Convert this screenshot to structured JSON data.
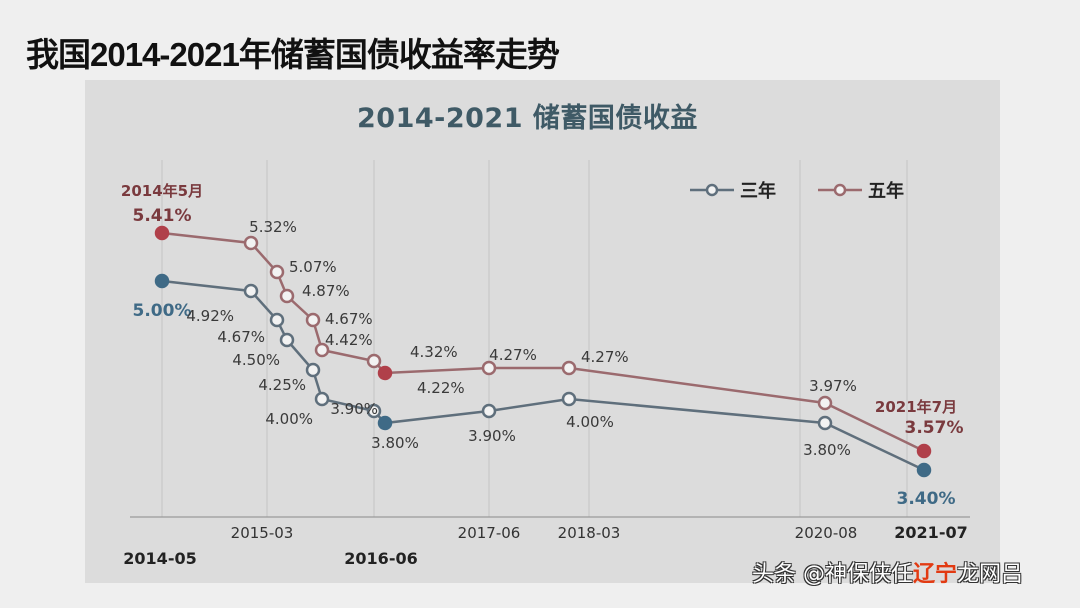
{
  "page": {
    "title": "我国2014-2021年储蓄国债收益率走势",
    "watermark_prefix": "头条 @神保侠任",
    "watermark_overlay": "辽宁",
    "watermark_suffix": "龙网吕"
  },
  "colors": {
    "three_year": "#5f6f7c",
    "three_year_fill": "#3f6a86",
    "five_year": "#9b6a6e",
    "five_year_fill": "#b0404a",
    "title": "#3f5a66",
    "highlight_label": "#7a3a3e",
    "panel_bg": "#dcdcdc",
    "page_bg": "#efefef"
  },
  "chart_data": {
    "type": "line",
    "title": "2014-2021 储蓄国债收益",
    "xlabel": "",
    "ylabel": "",
    "ylim": [
      3.2,
      5.6
    ],
    "grid": "vertical",
    "legend_position": "top-right",
    "x": [
      "2014-05",
      "2015-03",
      "2015-03+",
      "2015-03++",
      "2015-03+++",
      "2015-03++++",
      "2016-06",
      "2016-06+",
      "2017-06",
      "2018-03",
      "2020-08",
      "2021-07"
    ],
    "x_tick_labels": [
      {
        "label": "2014-05",
        "bold": true
      },
      {
        "label": "2015-03",
        "bold": false
      },
      {
        "label": "2016-06",
        "bold": true
      },
      {
        "label": "2017-06",
        "bold": false
      },
      {
        "label": "2018-03",
        "bold": false
      },
      {
        "label": "2020-08",
        "bold": false
      },
      {
        "label": "2021-07",
        "bold": true
      }
    ],
    "series": [
      {
        "name": "三年",
        "values": [
          5.0,
          4.92,
          4.67,
          4.5,
          4.25,
          4.0,
          3.9,
          3.8,
          3.9,
          4.0,
          3.8,
          3.4
        ],
        "labels": [
          "5.00%",
          "4.92%",
          "4.67%",
          "4.50%",
          "4.25%",
          "4.00%",
          "3.90%",
          "3.80%",
          "3.90%",
          "4.00%",
          "3.80%",
          "3.40%"
        ]
      },
      {
        "name": "五年",
        "values": [
          5.41,
          5.32,
          5.07,
          4.87,
          4.67,
          4.42,
          4.32,
          4.22,
          4.27,
          4.27,
          3.97,
          3.57
        ],
        "labels": [
          "5.41%",
          "5.32%",
          "5.07%",
          "4.87%",
          "4.67%",
          "4.42%",
          "4.32%",
          "4.22%",
          "4.27%",
          "4.27%",
          "3.97%",
          "3.57%"
        ]
      }
    ],
    "annotations": [
      {
        "text": "2014年5月",
        "target": "五年 start"
      },
      {
        "text": "2021年7月",
        "target": "五年 end"
      }
    ]
  }
}
